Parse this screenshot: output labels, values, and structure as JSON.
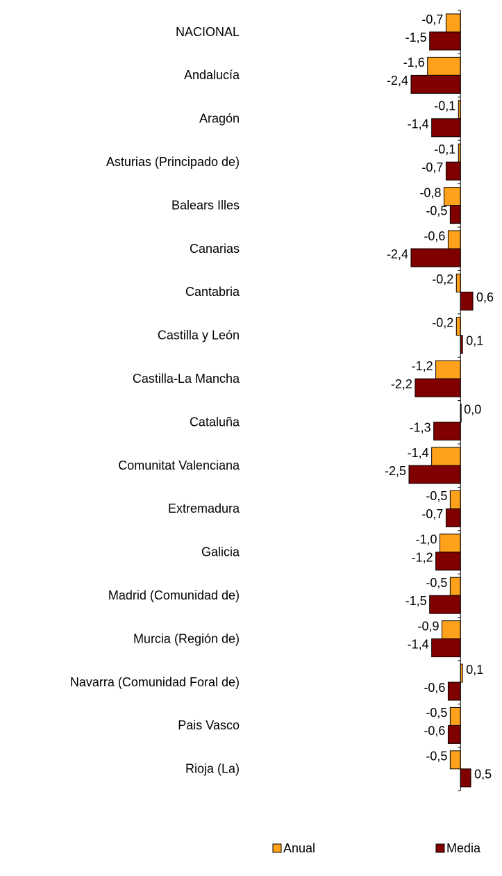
{
  "chart_data": {
    "type": "bar",
    "orientation": "horizontal",
    "categories": [
      "NACIONAL",
      "Andalucía",
      "Aragón",
      "Asturias (Principado de)",
      "Balears Illes",
      "Canarias",
      "Cantabria",
      "Castilla y León",
      "Castilla-La Mancha",
      "Cataluña",
      "Comunitat Valenciana",
      "Extremadura",
      "Galicia",
      "Madrid (Comunidad de)",
      "Murcia (Región de)",
      "Navarra (Comunidad Foral de)",
      "Pais Vasco",
      "Rioja (La)"
    ],
    "series": [
      {
        "name": "Anual",
        "color": "#ffa11a",
        "values": [
          -0.7,
          -1.6,
          -0.1,
          -0.1,
          -0.8,
          -0.6,
          -0.2,
          -0.2,
          -1.2,
          0.0,
          -1.4,
          -0.5,
          -1.0,
          -0.5,
          -0.9,
          0.1,
          -0.5,
          -0.5
        ],
        "value_labels": [
          "-0,7",
          "-1,6",
          "-0,1",
          "-0,1",
          "-0,8",
          "-0,6",
          "-0,2",
          "-0,2",
          "-1,2",
          "0,0",
          "-1,4",
          "-0,5",
          "-1,0",
          "-0,5",
          "-0,9",
          "0,1",
          "-0,5",
          "-0,5"
        ]
      },
      {
        "name": "Media",
        "color": "#800000",
        "values": [
          -1.5,
          -2.4,
          -1.4,
          -0.7,
          -0.5,
          -2.4,
          0.6,
          0.1,
          -2.2,
          -1.3,
          -2.5,
          -0.7,
          -1.2,
          -1.5,
          -1.4,
          -0.6,
          -0.6,
          0.5
        ],
        "value_labels": [
          "-1,5",
          "-2,4",
          "-1,4",
          "-0,7",
          "-0,5",
          "-2,4",
          "0,6",
          "0,1",
          "-2,2",
          "-1,3",
          "-2,5",
          "-0,7",
          "-1,2",
          "-1,5",
          "-1,4",
          "-0,6",
          "-0,6",
          "0,5"
        ]
      }
    ],
    "xlim": [
      -2.5,
      0.7
    ]
  }
}
